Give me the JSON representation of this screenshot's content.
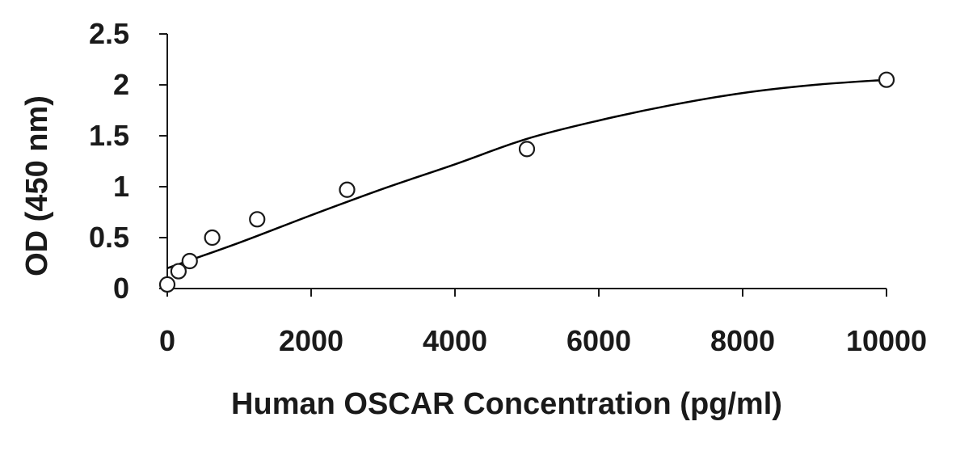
{
  "chart_data": {
    "type": "scatter",
    "title": "",
    "xlabel": "Human OSCAR Concentration (pg/ml)",
    "ylabel": "OD (450 nm)",
    "xlim": [
      0,
      10000
    ],
    "ylim": [
      0,
      2.5
    ],
    "x_ticks": [
      0,
      2000,
      4000,
      6000,
      8000,
      10000
    ],
    "x_tick_labels": [
      "0",
      "2000",
      "4000",
      "6000",
      "8000",
      "10000"
    ],
    "y_ticks": [
      0,
      0.5,
      1,
      1.5,
      2,
      2.5
    ],
    "y_tick_labels": [
      "0",
      "0.5",
      "1",
      "1.5",
      "2",
      "2.5"
    ],
    "grid": false,
    "legend": "none",
    "series": [
      {
        "points": [
          {
            "x": 0,
            "y": 0.04
          },
          {
            "x": 156,
            "y": 0.17
          },
          {
            "x": 312,
            "y": 0.27
          },
          {
            "x": 625,
            "y": 0.5
          },
          {
            "x": 1250,
            "y": 0.68
          },
          {
            "x": 2500,
            "y": 0.97
          },
          {
            "x": 5000,
            "y": 1.37
          },
          {
            "x": 10000,
            "y": 2.05
          }
        ]
      }
    ],
    "fit_curve": {
      "points": [
        {
          "x": 0,
          "y": 0.2
        },
        {
          "x": 1000,
          "y": 0.45
        },
        {
          "x": 2000,
          "y": 0.72
        },
        {
          "x": 3000,
          "y": 0.98
        },
        {
          "x": 4000,
          "y": 1.22
        },
        {
          "x": 5000,
          "y": 1.47
        },
        {
          "x": 6000,
          "y": 1.65
        },
        {
          "x": 7000,
          "y": 1.8
        },
        {
          "x": 8000,
          "y": 1.92
        },
        {
          "x": 9000,
          "y": 2.0
        },
        {
          "x": 10000,
          "y": 2.05
        }
      ]
    },
    "colors": {
      "axis": "#1a1a1a",
      "marker_stroke": "#1a1a1a",
      "marker_fill": "#ffffff",
      "curve": "#000000"
    }
  }
}
